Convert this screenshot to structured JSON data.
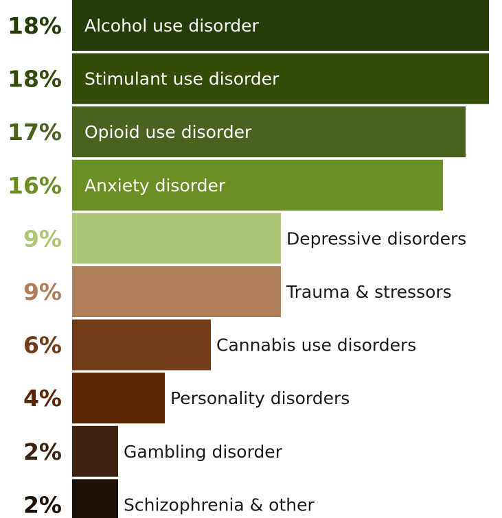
{
  "chart_data": {
    "type": "bar",
    "orientation": "horizontal",
    "categories": [
      "Alcohol use disorder",
      "Stimulant use disorder",
      "Opioid use disorder",
      "Anxiety disorder",
      "Depressive disorders",
      "Trauma & stressors",
      "Cannabis use disorders",
      "Personality disorders",
      "Gambling disorder",
      "Schizophrenia & other"
    ],
    "values": [
      18,
      18,
      17,
      16,
      9,
      9,
      6,
      4,
      2,
      2
    ],
    "value_labels": [
      "18%",
      "18%",
      "17%",
      "16%",
      "9%",
      "9%",
      "6%",
      "4%",
      "2%",
      "2%"
    ],
    "colors": [
      "#253c06",
      "#344b06",
      "#4b621e",
      "#6b8e23",
      "#adc774",
      "#b07e58",
      "#723c18",
      "#5c2602",
      "#3e2410",
      "#1c0f05"
    ],
    "label_colors": [
      "#ffffff",
      "#ffffff",
      "#ffffff",
      "#ffffff",
      "#1a1a1a",
      "#1a1a1a",
      "#1a1a1a",
      "#1a1a1a",
      "#1a1a1a",
      "#1a1a1a"
    ],
    "label_inside": [
      true,
      true,
      true,
      true,
      false,
      false,
      false,
      false,
      false,
      false
    ],
    "xlim": [
      0,
      18
    ],
    "grid": false,
    "legend": "none"
  }
}
